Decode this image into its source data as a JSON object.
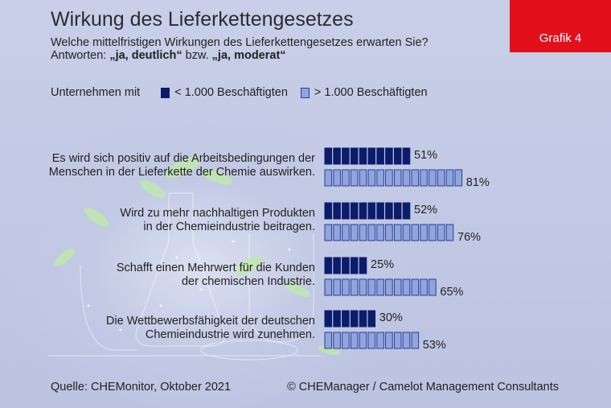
{
  "header": {
    "title": "Wirkung des Lieferkettengesetzes",
    "subtitle_line1": "Welche mittelfristigen Wirkungen des Lieferkettengesetzes erwarten Sie?",
    "subtitle_prefix": "Antworten: ",
    "subtitle_a": "„ja, deutlich“",
    "subtitle_mid": " bzw. ",
    "subtitle_b": "„ja, moderat“",
    "badge": "Grafik 4"
  },
  "legend": {
    "prefix": "Unternehmen mit",
    "series1": "< 1.000 Beschäftigten",
    "series2": "> 1.000 Beschäftigten"
  },
  "colors": {
    "dark": "#0b1c6b",
    "light": "#8fa5dc",
    "accent": "#e30f1b"
  },
  "chart_data": {
    "type": "bar",
    "orientation": "horizontal",
    "categories": [
      [
        "Es wird sich positiv auf die Arbeitsbedingungen der",
        "Menschen in der Lieferkette der Chemie auswirken."
      ],
      [
        "Wird zu mehr nachhaltigen Produkten",
        "in der Chemieindustrie beitragen."
      ],
      [
        "Schafft einen Mehrwert für die Kunden",
        "der chemischen Industrie."
      ],
      [
        "Die Wettbewerbsfähigkeit der deutschen",
        "Chemieindustrie wird zunehmen."
      ]
    ],
    "series": [
      {
        "name": "< 1.000 Beschäftigten",
        "values": [
          51,
          52,
          25,
          30
        ]
      },
      {
        "name": "> 1.000 Beschäftigten",
        "values": [
          81,
          76,
          65,
          53
        ]
      }
    ],
    "unit": "%",
    "xlim": [
      0,
      100
    ]
  },
  "footer": {
    "source": "Quelle: CHEMonitor, Oktober 2021",
    "copyright": "© CHEManager / Camelot Management Consultants"
  }
}
